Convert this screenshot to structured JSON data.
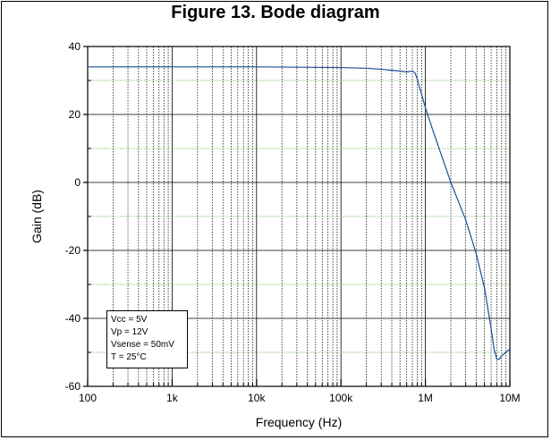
{
  "chart_data": {
    "type": "line",
    "title": "Figure 13. Bode diagram",
    "xlabel": "Frequency (Hz)",
    "ylabel": "Gain (dB)",
    "xscale": "log",
    "xlim": [
      100,
      10000000
    ],
    "ylim": [
      -60,
      40
    ],
    "x_ticks": [
      100,
      1000,
      10000,
      100000,
      1000000,
      10000000
    ],
    "x_tick_labels": [
      "100",
      "1k",
      "10k",
      "100k",
      "1M",
      "10M"
    ],
    "y_ticks": [
      -60,
      -40,
      -20,
      0,
      20,
      40
    ],
    "y_tick_labels": [
      "-60",
      "-40",
      "-20",
      "0",
      "20",
      "40"
    ],
    "grid": true,
    "series": [
      {
        "color": "#1f4e9c",
        "x": [
          100,
          1000,
          10000,
          100000,
          200000,
          300000,
          400000,
          500000,
          600000,
          700000,
          750000,
          800000,
          850000,
          900000,
          1000000,
          1200000,
          1500000,
          2000000,
          3000000,
          4000000,
          5000000,
          6000000,
          6500000,
          7000000,
          7500000,
          8000000,
          9000000,
          10000000
        ],
        "y": [
          34,
          34,
          34,
          33.8,
          33.6,
          33.3,
          33.0,
          32.8,
          32.5,
          32.8,
          32.3,
          30.5,
          28,
          26,
          22,
          16,
          9,
          0,
          -11,
          -21,
          -31,
          -43,
          -49,
          -52,
          -52,
          -51,
          -50,
          -49
        ]
      }
    ],
    "annotations": [
      "Vcc = 5V",
      "Vp = 12V",
      "Vsense = 50mV",
      "T = 25°C"
    ],
    "legend_position": "bottom-left"
  }
}
